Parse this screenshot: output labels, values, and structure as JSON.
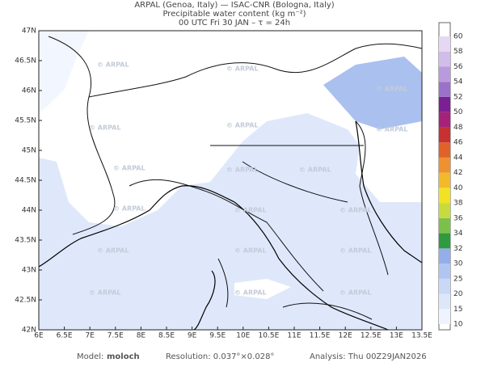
{
  "header": {
    "line1": "ARPAL (Genoa, Italy)  —  ISAC-CNR (Bologna, Italy)",
    "line2": "Precipitable water content (kg m⁻²)",
    "line3": "00 UTC Fri 30 JAN  –  τ = 24h"
  },
  "map": {
    "lat_labels": [
      "47N",
      "46.5N",
      "46N",
      "45.5N",
      "45N",
      "44.5N",
      "44N",
      "43.5N",
      "43N",
      "42.5N",
      "42N"
    ],
    "lon_labels": [
      "6E",
      "6.5E",
      "7E",
      "7.5E",
      "8E",
      "8.5E",
      "9E",
      "9.5E",
      "10E",
      "10.5E",
      "11E",
      "11.5E",
      "12E",
      "12.5E",
      "13E",
      "13.5E"
    ],
    "watermark": "© ARPAL"
  },
  "colorbar": {
    "levels": [
      10,
      15,
      20,
      25,
      30,
      32,
      34,
      36,
      38,
      40,
      42,
      44,
      46,
      48,
      50,
      52,
      54,
      56,
      58,
      60
    ],
    "colors": [
      "#eef3fd",
      "#dde7fa",
      "#c9d8f6",
      "#b0c5f1",
      "#93aee8",
      "#2f9a3f",
      "#7cc04c",
      "#c6dc3e",
      "#f1e223",
      "#f2b92a",
      "#ee9131",
      "#e06228",
      "#c63131",
      "#a6227a",
      "#7b2092",
      "#9b72c9",
      "#b99bdd",
      "#d2bce9",
      "#e6d8f3"
    ]
  },
  "footer": {
    "model_label": "Model:",
    "model": "moloch",
    "resolution": "Resolution: 0.037°×0.028°",
    "analysis": "Analysis: Thu 00Z29JAN2026"
  }
}
